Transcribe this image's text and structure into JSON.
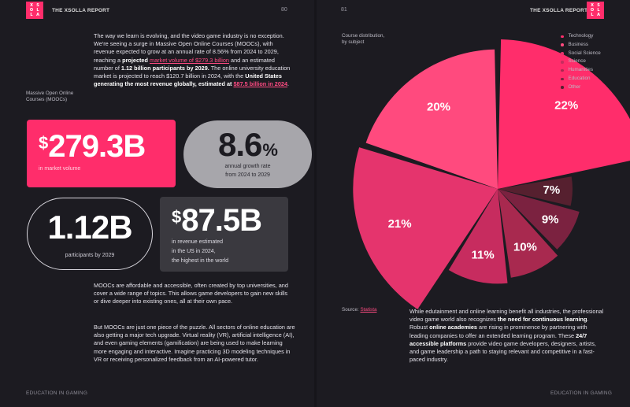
{
  "left_page": {
    "report_title": "THE XSOLLA REPORT",
    "page_number": "80",
    "footer": "EDUCATION IN GAMING",
    "logo_letters": [
      "X",
      "S",
      "O",
      "L",
      "L",
      "A"
    ],
    "intro": {
      "t1": "The way we learn is evolving, and the video game industry is no exception. We're seeing a surge in Massive Open Online Courses (MOOCs), with revenue expected to grow at an annual rate of 8.56% from 2024 to 2029, reaching a ",
      "b1": "projected",
      "l1": "market volume of $279.3 billion",
      "t2": " and an estimated number of ",
      "b2": "1.12 billion participants by 2029.",
      "t3": " The online university education market is projected to reach $120.7 billion in 2024, with the ",
      "b3": "United States generating the most revenue globally, estimated at",
      "l2": "$87.5 billion in 2024",
      "t4": "."
    },
    "mooc_label": "Massive Open Online Courses (MOOCs)",
    "stats": {
      "market_currency": "$",
      "market_value": "279.3B",
      "market_caption": "in market volume",
      "growth_value": "8.6",
      "growth_pct": "%",
      "growth_caption_1": "annual growth rate",
      "growth_caption_2": "from 2024 to 2029",
      "participants_value": "1.12B",
      "participants_caption": "participants by 2029",
      "us_currency": "$",
      "us_value": "87.5B",
      "us_caption_1": "in revenue estimated",
      "us_caption_2": "in the US in 2024,",
      "us_caption_3": "the highest in the world"
    },
    "para2": "MOOCs are affordable and accessible, often created by top universities, and cover a wide range of topics. This allows game developers to gain new skills or dive deeper into existing ones, all at their own pace.",
    "para3": "But MOOCs are just one piece of the puzzle. All sectors of online education are also getting a major tech upgrade. Virtual reality (VR), artificial intelligence (AI), and even gaming elements (gamification) are being used to make learning more engaging and interactive. Imagine practicing 3D modeling techniques in VR or receiving personalized feedback from an AI-powered tutor."
  },
  "right_page": {
    "report_title": "THE XSOLLA REPORT",
    "page_number": "81",
    "footer": "EDUCATION IN GAMING",
    "logo_letters": [
      "X",
      "S",
      "O",
      "L",
      "L",
      "A"
    ],
    "source_label": "Source:",
    "source_link": "Statista",
    "closing": {
      "t1": "While edutainment and online learning benefit all industries, the professional video game world also recognizes ",
      "b1": "the need for continuous learning",
      "t2": ". Robust ",
      "b2": "online academies",
      "t3": " are rising in prominence by partnering with leading companies to offer an extended learning program. These ",
      "b3": "24/7 accessible platforms",
      "t4": " provide video game developers, designers, artists, and game leadership a path to staying relevant and competitive in a fast-paced industry."
    }
  },
  "chart_data": {
    "type": "pie",
    "title": "Course distribution, by subject",
    "categories": [
      "Technology",
      "Business",
      "Social Science",
      "Science",
      "Humanities",
      "Education",
      "Other"
    ],
    "values": [
      22,
      20,
      21,
      11,
      10,
      9,
      7
    ],
    "value_labels": [
      "22%",
      "20%",
      "21%",
      "11%",
      "10%",
      "9%",
      "7%"
    ],
    "legend_labels": [
      "Technology",
      "Business",
      "Social Science",
      "Science",
      "Humanities",
      "Education",
      "Other"
    ],
    "legend_position": "top-right",
    "colors": [
      "#ff2d6b",
      "#ff4a7e",
      "#e5346d",
      "#c72c5f",
      "#a8294f",
      "#7b2240",
      "#56202f"
    ]
  }
}
